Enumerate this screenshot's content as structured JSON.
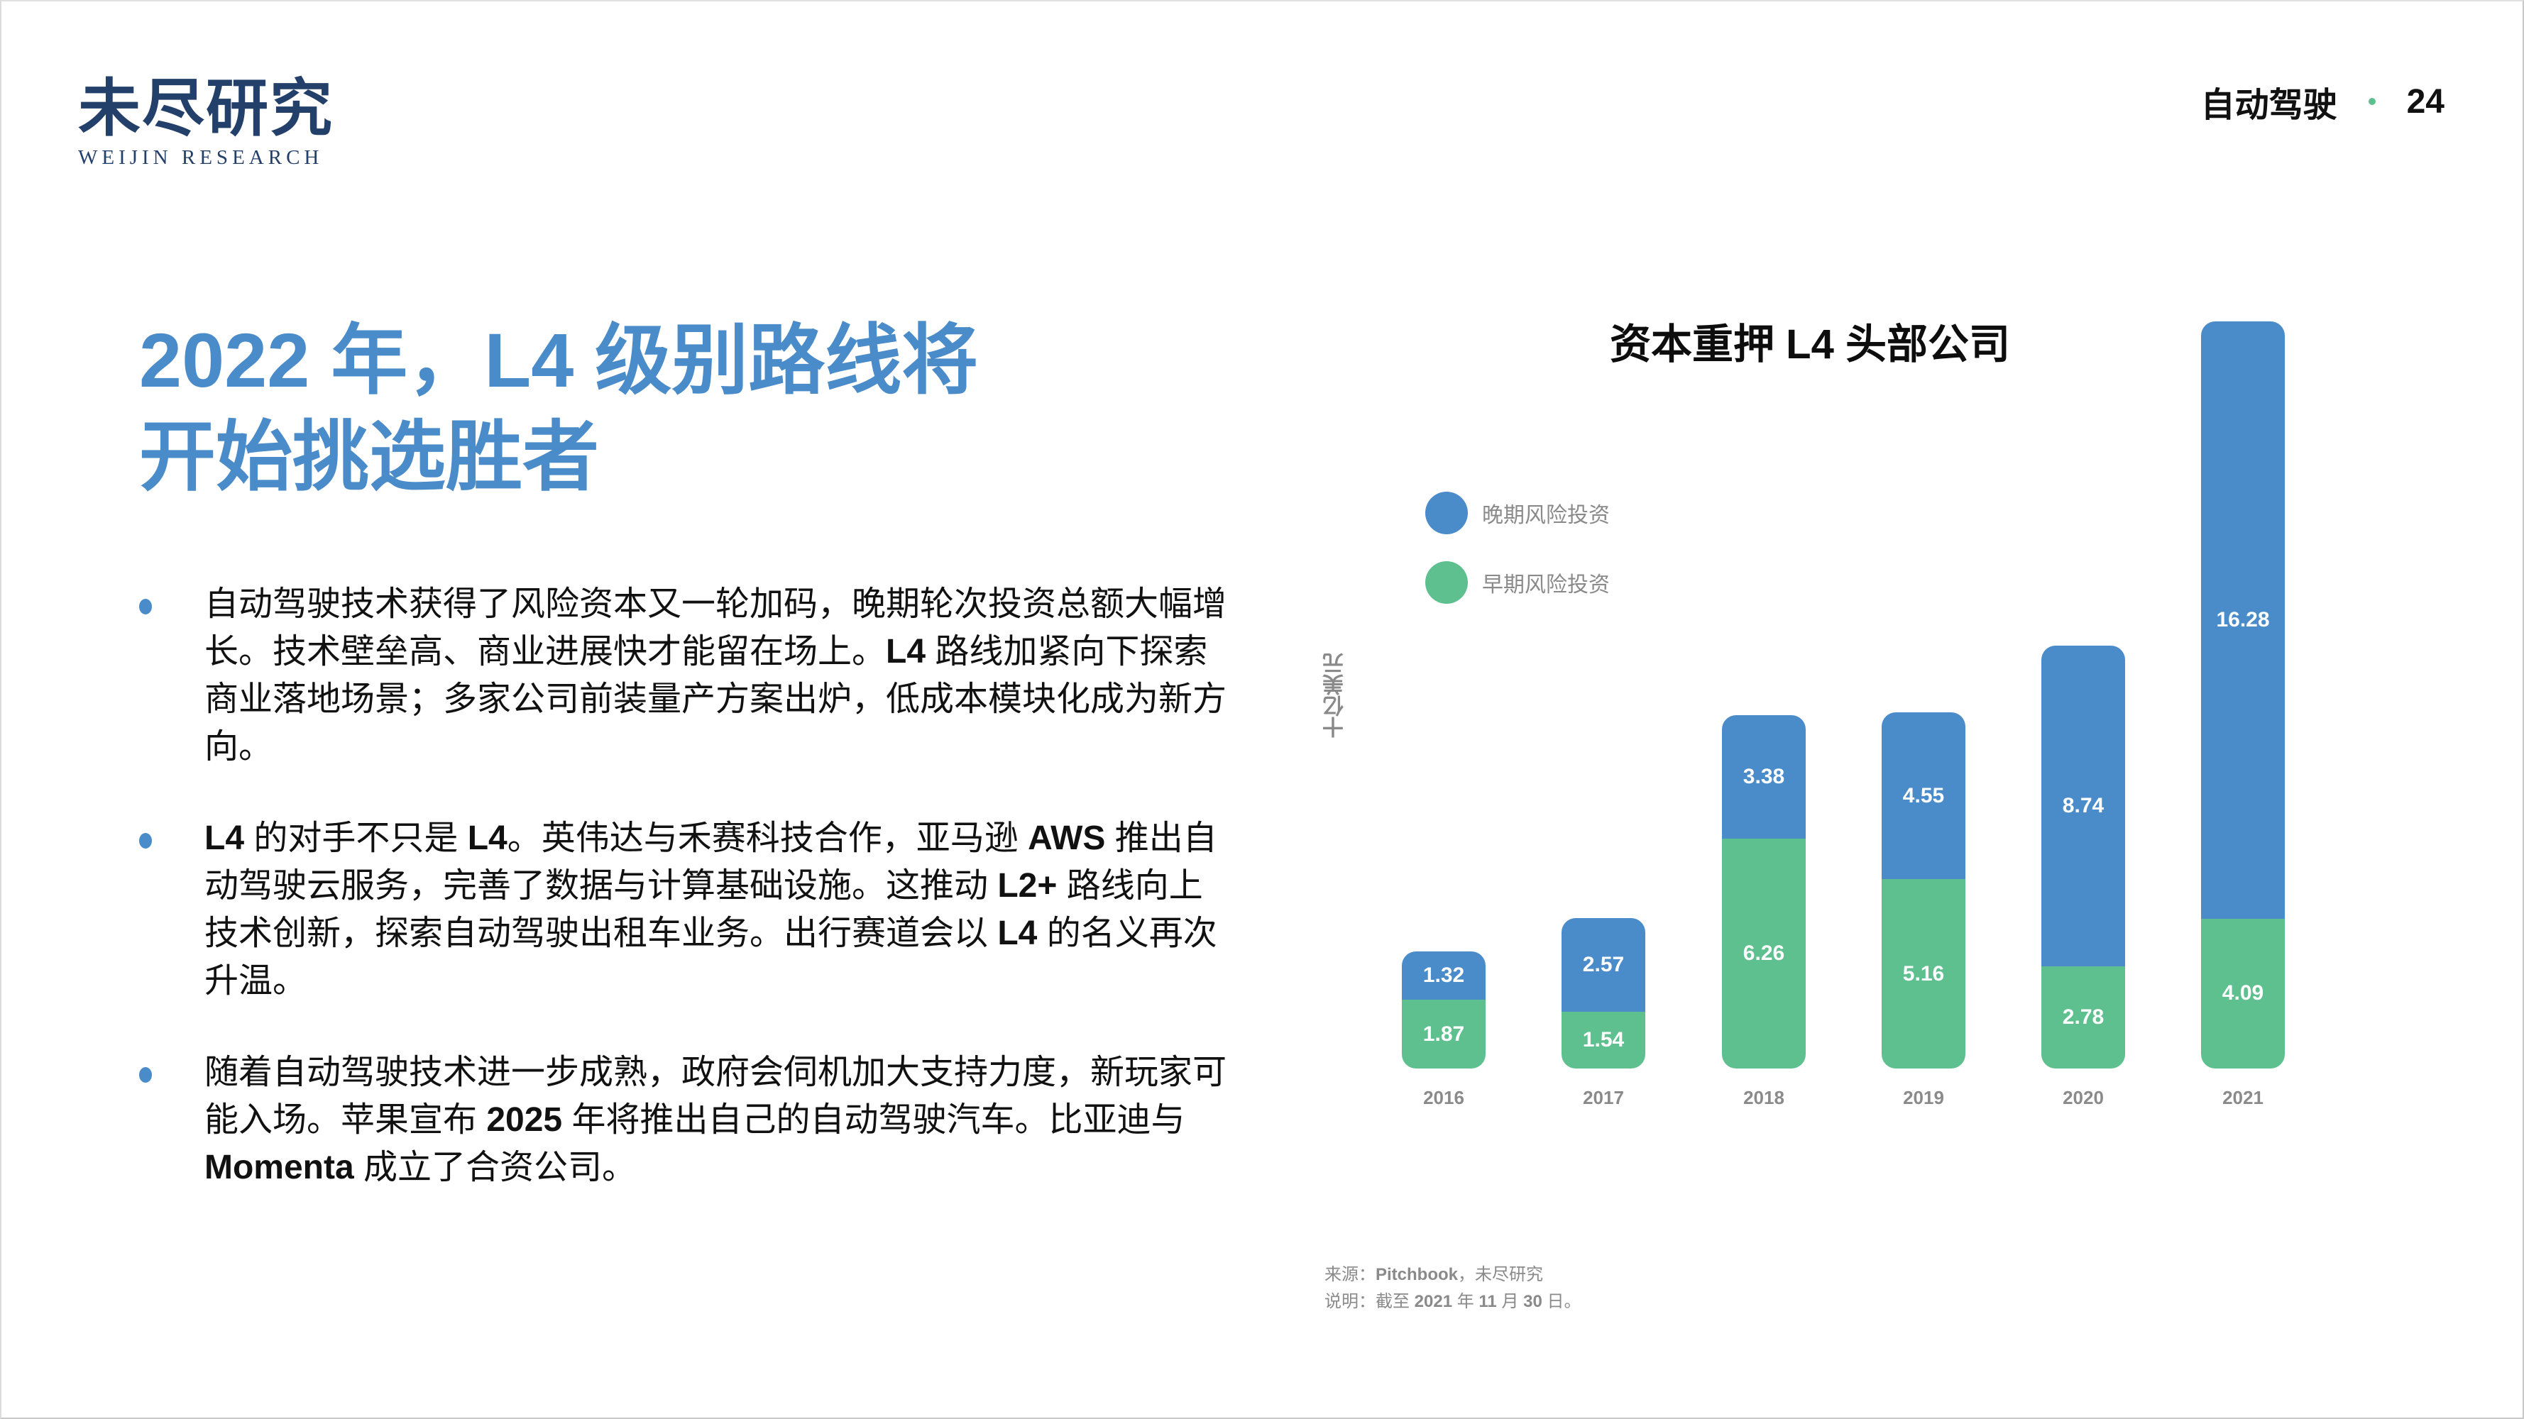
{
  "header": {
    "logo_cn": "未尽研究",
    "logo_en": "WEIJIN RESEARCH",
    "section": "自动驾驶",
    "page_number": "24",
    "accent_dot_color": "#5ec08f"
  },
  "title": {
    "line1": "2022 年，L4 级别路线将",
    "line2": "开始挑选胜者",
    "color": "#4a8bc9"
  },
  "bullets": [
    {
      "parts": [
        {
          "text": "自动驾驶技术获得了风险资本又一轮加码，晚期轮次投资总额大幅增长。技术壁垒高、商业进展快才能留在场上。",
          "bold": false
        },
        {
          "text": "L4",
          "bold": true
        },
        {
          "text": " 路线加紧向下探索商业落地场景；多家公司前装量产方案出炉，低成本模块化成为新方向。",
          "bold": false
        }
      ]
    },
    {
      "parts": [
        {
          "text": "L4",
          "bold": true
        },
        {
          "text": " 的对手不只是 ",
          "bold": false
        },
        {
          "text": "L4",
          "bold": true
        },
        {
          "text": "。英伟达与禾赛科技合作，亚马逊 ",
          "bold": false
        },
        {
          "text": "AWS",
          "bold": true
        },
        {
          "text": " 推出自动驾驶云服务，完善了数据与计算基础设施。这推动 ",
          "bold": false
        },
        {
          "text": "L2+",
          "bold": true
        },
        {
          "text": " 路线向上技术创新，探索自动驾驶出租车业务。出行赛道会以 ",
          "bold": false
        },
        {
          "text": "L4",
          "bold": true
        },
        {
          "text": " 的名义再次升温。",
          "bold": false
        }
      ]
    },
    {
      "parts": [
        {
          "text": "随着自动驾驶技术进一步成熟，政府会伺机加大支持力度，新玩家可能入场。苹果宣布 ",
          "bold": false
        },
        {
          "text": "2025",
          "bold": true
        },
        {
          "text": " 年将推出自己的自动驾驶汽车。比亚迪与 ",
          "bold": false
        },
        {
          "text": "Momenta",
          "bold": true
        },
        {
          "text": " 成立了合资公司。",
          "bold": false
        }
      ]
    }
  ],
  "chart": {
    "title": "资本重押 L4 头部公司",
    "y_unit_label": "十亿美元",
    "legend": [
      {
        "label": "晚期风险投资",
        "color": "#4a8bc9"
      },
      {
        "label": "早期风险投资",
        "color": "#5ec08f"
      }
    ],
    "footnote_source_prefix": "来源：",
    "footnote_source_bold": "Pitchbook",
    "footnote_source_suffix": "，未尽研究",
    "footnote_note_parts": [
      {
        "text": "说明：截至 ",
        "bold": false
      },
      {
        "text": "2021",
        "bold": true
      },
      {
        "text": " 年 ",
        "bold": false
      },
      {
        "text": "11",
        "bold": true
      },
      {
        "text": " 月 ",
        "bold": false
      },
      {
        "text": "30",
        "bold": true
      },
      {
        "text": " 日。",
        "bold": false
      }
    ]
  },
  "chart_data": {
    "type": "bar",
    "stacked": true,
    "title": "资本重押 L4 头部公司",
    "xlabel": "",
    "ylabel": "十亿美元",
    "categories": [
      "2016",
      "2017",
      "2018",
      "2019",
      "2020",
      "2021"
    ],
    "series": [
      {
        "name": "早期风险投资",
        "color": "#5ec08f",
        "values": [
          1.87,
          1.54,
          6.26,
          5.16,
          2.78,
          4.09
        ]
      },
      {
        "name": "晚期风险投资",
        "color": "#4a8bc9",
        "values": [
          1.32,
          2.57,
          3.38,
          4.55,
          8.74,
          16.28
        ]
      }
    ],
    "ylim": [
      0,
      20.37
    ],
    "grid": false,
    "legend_position": "upper-left",
    "data_labels": true
  }
}
